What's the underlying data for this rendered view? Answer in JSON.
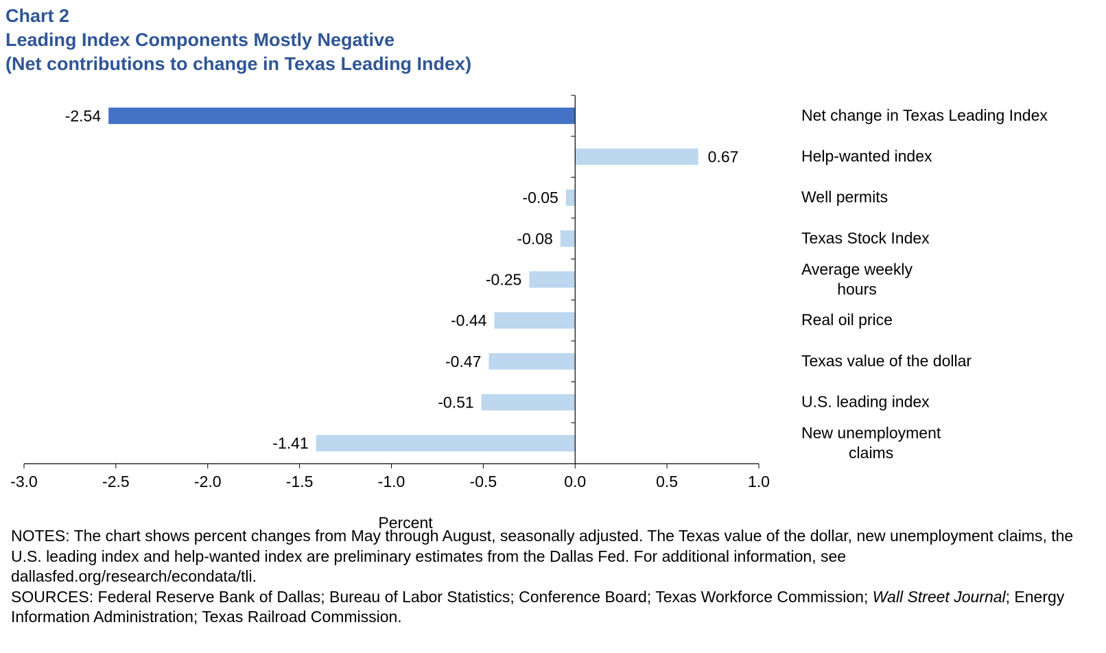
{
  "header": {
    "chart_number": "Chart 2",
    "title": "Leading Index Components Mostly Negative",
    "subtitle": "(Net contributions to change in Texas Leading Index)"
  },
  "chart_data": {
    "type": "bar",
    "orientation": "horizontal",
    "categories": [
      "Net change in Texas Leading Index",
      "Help-wanted index",
      "Well permits",
      "Texas Stock Index",
      "Average weekly hours",
      "Real oil price",
      "Texas value of the dollar",
      "U.S. leading index",
      "New unemployment claims"
    ],
    "category_label_lines": [
      [
        "Net change in Texas Leading Index"
      ],
      [
        "Help-wanted index"
      ],
      [
        "Well permits"
      ],
      [
        "Texas Stock Index"
      ],
      [
        "Average weekly",
        "hours"
      ],
      [
        "Real oil price"
      ],
      [
        "Texas value of the dollar"
      ],
      [
        "U.S. leading index"
      ],
      [
        "New unemployment",
        "claims"
      ]
    ],
    "values": [
      -2.54,
      0.67,
      -0.05,
      -0.08,
      -0.25,
      -0.44,
      -0.47,
      -0.51,
      -1.41
    ],
    "value_labels": [
      "-2.54",
      "0.67",
      "-0.05",
      "-0.08",
      "-0.25",
      "-0.44",
      "-0.47",
      "-0.51",
      "-1.41"
    ],
    "bar_colors": [
      "#4472c4",
      "#bdd7ee",
      "#bdd7ee",
      "#bdd7ee",
      "#bdd7ee",
      "#bdd7ee",
      "#bdd7ee",
      "#bdd7ee",
      "#bdd7ee"
    ],
    "xlim": [
      -3.0,
      1.0
    ],
    "x_ticks": [
      -3.0,
      -2.5,
      -2.0,
      -1.5,
      -1.0,
      -0.5,
      0.0,
      0.5,
      1.0
    ],
    "x_tick_labels": [
      "-3.0",
      "-2.5",
      "-2.0",
      "-1.5",
      "-1.0",
      "-0.5",
      "0.0",
      "0.5",
      "1.0"
    ],
    "xlabel": "Percent",
    "ylabel": "",
    "grid": false,
    "title": "Leading Index Components Mostly Negative"
  },
  "notes": {
    "notes_text": "NOTES: The chart shows percent changes from May through August, seasonally adjusted. The Texas value of the dollar, new unemployment claims, the U.S. leading index and help-wanted index are preliminary estimates from the Dallas Fed. For additional information, see dallasfed.org/research/econdata/tli.",
    "sources_prefix": "SOURCES: Federal Reserve Bank of Dallas; Bureau of Labor Statistics; Conference Board; Texas Workforce Commission; ",
    "sources_italic": "Wall Street Journal",
    "sources_suffix": "; Energy Information Administration; Texas Railroad Commission."
  }
}
